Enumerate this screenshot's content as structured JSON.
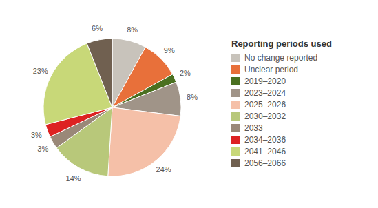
{
  "chart_data": {
    "type": "pie",
    "legend_title": "Reporting periods used",
    "categories": [
      "No change reported",
      "Unclear period",
      "2019–2020",
      "2023–2024",
      "2025–2026",
      "2030–2032",
      "2033",
      "2034–2036",
      "2041–2046",
      "2056–2066"
    ],
    "values": [
      8,
      9,
      2,
      8,
      24,
      14,
      3,
      3,
      23,
      6
    ],
    "value_labels": [
      "8%",
      "9%",
      "2%",
      "8%",
      "24%",
      "14%",
      "3%",
      "3%",
      "23%",
      "6%"
    ],
    "colors": [
      "#c8c3bb",
      "#e8703a",
      "#4a7020",
      "#a09488",
      "#f5c0a8",
      "#b8c87a",
      "#9a8878",
      "#dd2222",
      "#c8d878",
      "#706050"
    ],
    "data_labels": true,
    "legend": "right"
  }
}
